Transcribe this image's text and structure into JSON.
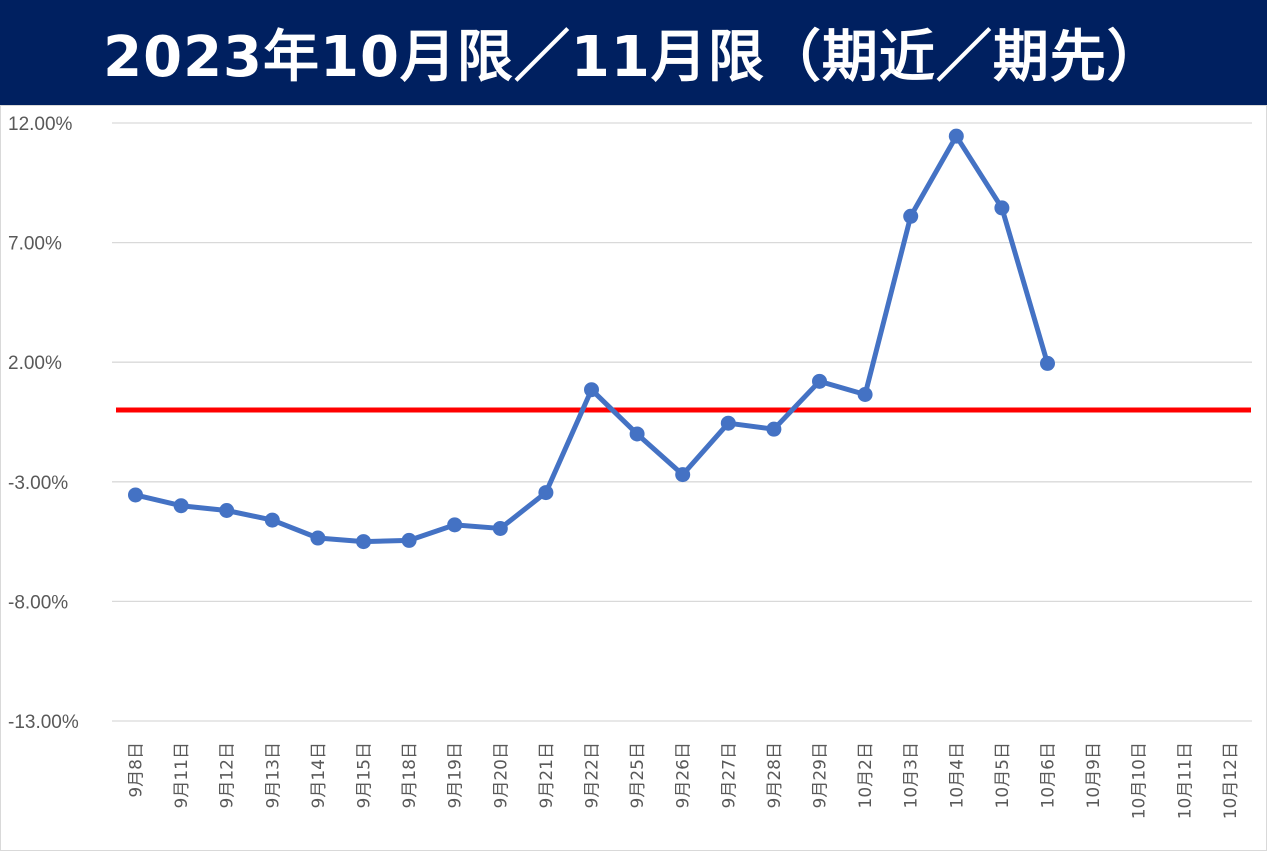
{
  "title": "2023年10月限／11月限（期近／期先）",
  "colors": {
    "title_bg": "#002060",
    "title_text": "#ffffff",
    "series": "#4472c4",
    "zero_line": "#ff0000",
    "grid": "#d9d9d9",
    "tick_text": "#595959"
  },
  "chart_data": {
    "type": "line",
    "title": "2023年10月限／11月限（期近／期先）",
    "categories": [
      "9月8日",
      "9月11日",
      "9月12日",
      "9月13日",
      "9月14日",
      "9月15日",
      "9月18日",
      "9月19日",
      "9月20日",
      "9月21日",
      "9月22日",
      "9月25日",
      "9月26日",
      "9月27日",
      "9月28日",
      "9月29日",
      "10月2日",
      "10月3日",
      "10月4日",
      "10月5日",
      "10月6日",
      "10月9日",
      "10月10日",
      "10月11日",
      "10月12日"
    ],
    "series": [
      {
        "values": [
          -3.55,
          -4.0,
          -4.2,
          -4.6,
          -5.35,
          -5.5,
          -5.45,
          -4.8,
          -4.95,
          -3.45,
          0.85,
          -1.0,
          -2.7,
          -0.55,
          -0.8,
          1.2,
          0.65,
          8.1,
          11.45,
          8.45,
          1.95,
          null,
          null,
          null,
          null
        ]
      }
    ],
    "reference_line": {
      "y": 0,
      "color": "#ff0000"
    },
    "ylim": [
      -13,
      12
    ],
    "yticks": [
      12,
      7,
      2,
      -3,
      -8,
      -13
    ],
    "ytick_labels": [
      "12.00%",
      "7.00%",
      "2.00%",
      "-3.00%",
      "-8.00%",
      "-13.00%"
    ],
    "grid": true,
    "legend": "none",
    "xlabel": "",
    "ylabel": ""
  }
}
